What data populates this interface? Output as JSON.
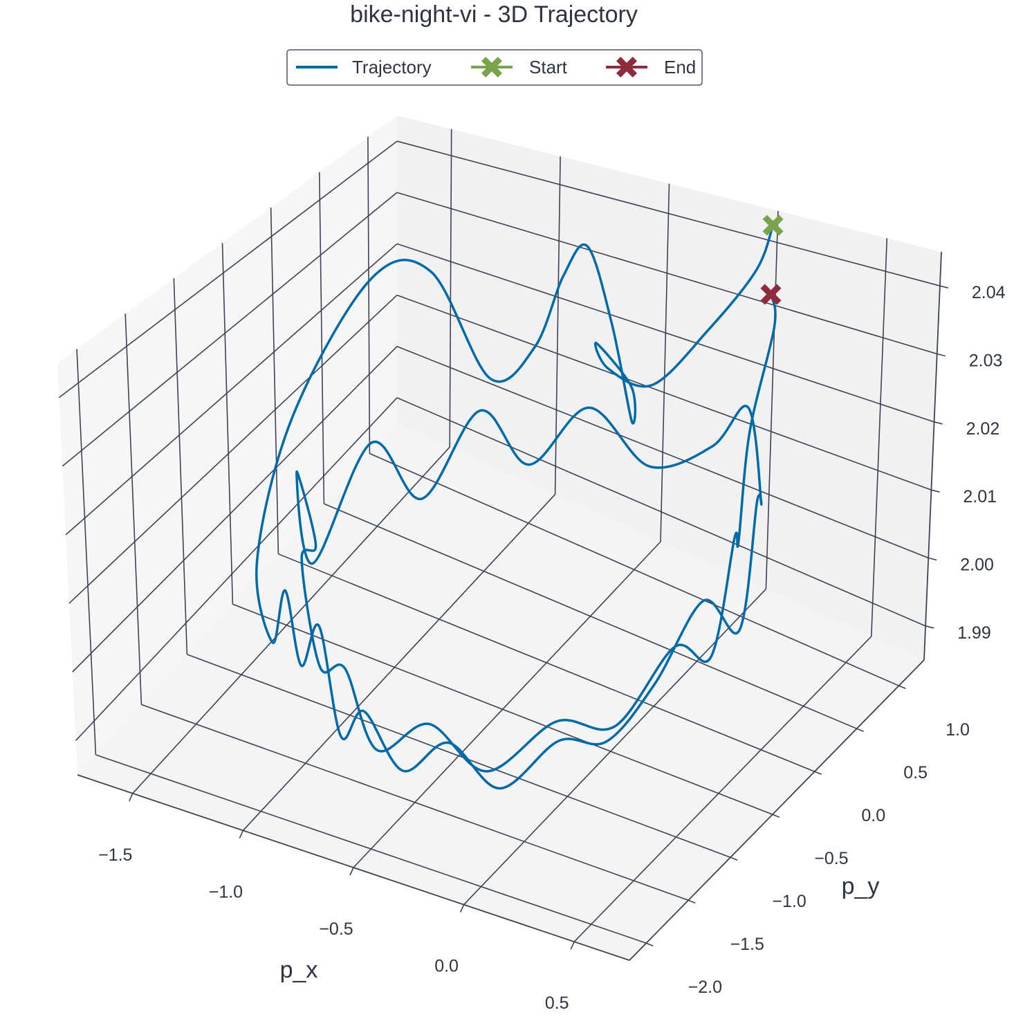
{
  "chart_data": {
    "type": "line",
    "projection": "3d",
    "title": "bike-night-vi - 3D Trajectory",
    "xlabel": "p_x",
    "ylabel": "p_y",
    "zlabel": "",
    "xticks": [
      "−1.5",
      "−1.0",
      "−0.5",
      "0.0",
      "0.5"
    ],
    "yticks": [
      "−2.0",
      "−1.5",
      "−1.0",
      "−0.5",
      "0.0",
      "0.5",
      "1.0"
    ],
    "zticks": [
      "1.99",
      "2.00",
      "2.01",
      "2.02",
      "2.03",
      "2.04"
    ],
    "xlim": [
      -1.75,
      0.75
    ],
    "ylim": [
      -2.2,
      1.3
    ],
    "zlim": [
      1.985,
      2.045
    ],
    "grid": true,
    "legend_position": "top-center",
    "legend": [
      {
        "label": "Trajectory",
        "color": "#0069a8",
        "marker": "line"
      },
      {
        "label": "Start",
        "color": "#7aa34d",
        "marker": "X"
      },
      {
        "label": "End",
        "color": "#8e2b3c",
        "marker": "X"
      }
    ],
    "series": [
      {
        "name": "Trajectory",
        "color": "#0069a8",
        "points": [
          [
            0.06,
            1.1,
            2.046
          ],
          [
            0.03,
            1.0,
            2.04
          ],
          [
            -0.1,
            0.8,
            2.032
          ],
          [
            -0.25,
            0.55,
            2.025
          ],
          [
            -0.35,
            0.3,
            2.03
          ],
          [
            -0.3,
            0.05,
            2.038
          ],
          [
            -0.2,
            0.2,
            2.03
          ],
          [
            -0.3,
            0.45,
            2.02
          ],
          [
            -0.5,
            0.7,
            2.03
          ],
          [
            -0.7,
            0.9,
            2.038
          ],
          [
            -0.85,
            1.0,
            2.03
          ],
          [
            -1.0,
            1.05,
            2.015
          ],
          [
            -1.1,
            0.8,
            2.012
          ],
          [
            -1.2,
            0.4,
            2.035
          ],
          [
            -1.3,
            0.0,
            2.038
          ],
          [
            -1.45,
            -0.5,
            2.02
          ],
          [
            -1.5,
            -0.8,
            2.0
          ],
          [
            -1.35,
            -1.0,
            1.992
          ],
          [
            -1.2,
            -1.2,
            2.005
          ],
          [
            -1.05,
            -1.4,
            1.998
          ],
          [
            -0.9,
            -1.55,
            2.008
          ],
          [
            -0.75,
            -1.7,
            1.995
          ],
          [
            -0.6,
            -1.8,
            2.002
          ],
          [
            -0.45,
            -1.75,
            1.994
          ],
          [
            -0.3,
            -1.6,
            1.998
          ],
          [
            -0.15,
            -1.4,
            1.99
          ],
          [
            0.0,
            -1.1,
            1.995
          ],
          [
            0.1,
            -0.8,
            1.992
          ],
          [
            0.2,
            -0.5,
            1.998
          ],
          [
            0.3,
            -0.2,
            2.008
          ],
          [
            0.35,
            0.1,
            2.0
          ],
          [
            0.3,
            0.4,
            2.015
          ],
          [
            0.2,
            0.7,
            2.01
          ],
          [
            0.05,
            0.9,
            2.02
          ],
          [
            -0.15,
            1.0,
            2.01
          ],
          [
            -0.4,
            0.9,
            2.005
          ],
          [
            -0.6,
            0.7,
            2.015
          ],
          [
            -0.75,
            0.4,
            2.008
          ],
          [
            -0.85,
            0.1,
            2.02
          ],
          [
            -0.95,
            -0.3,
            2.01
          ],
          [
            -1.05,
            -0.6,
            2.022
          ],
          [
            -1.2,
            -0.9,
            2.005
          ],
          [
            -1.35,
            -0.7,
            2.015
          ],
          [
            -1.4,
            -0.4,
            1.998
          ],
          [
            -1.25,
            -0.9,
            2.005
          ],
          [
            -1.05,
            -1.2,
            1.995
          ],
          [
            -0.85,
            -1.4,
            2.0
          ],
          [
            -0.65,
            -1.55,
            1.992
          ],
          [
            -0.45,
            -1.45,
            1.997
          ],
          [
            -0.25,
            -1.3,
            1.99
          ],
          [
            -0.05,
            -1.0,
            1.996
          ],
          [
            0.1,
            -0.7,
            1.993
          ],
          [
            0.25,
            -0.4,
            2.003
          ],
          [
            0.3,
            -0.1,
            1.998
          ],
          [
            0.28,
            0.2,
            2.012
          ],
          [
            0.18,
            0.5,
            2.006
          ],
          [
            0.1,
            0.8,
            2.018
          ],
          [
            0.12,
            1.0,
            2.032
          ],
          [
            0.08,
            1.05,
            2.036
          ]
        ]
      }
    ],
    "start": {
      "name": "Start",
      "color": "#7aa34d",
      "point": [
        0.06,
        1.1,
        2.046
      ]
    },
    "end": {
      "name": "End",
      "color": "#8e2b3c",
      "point": [
        0.08,
        1.05,
        2.036
      ]
    }
  }
}
